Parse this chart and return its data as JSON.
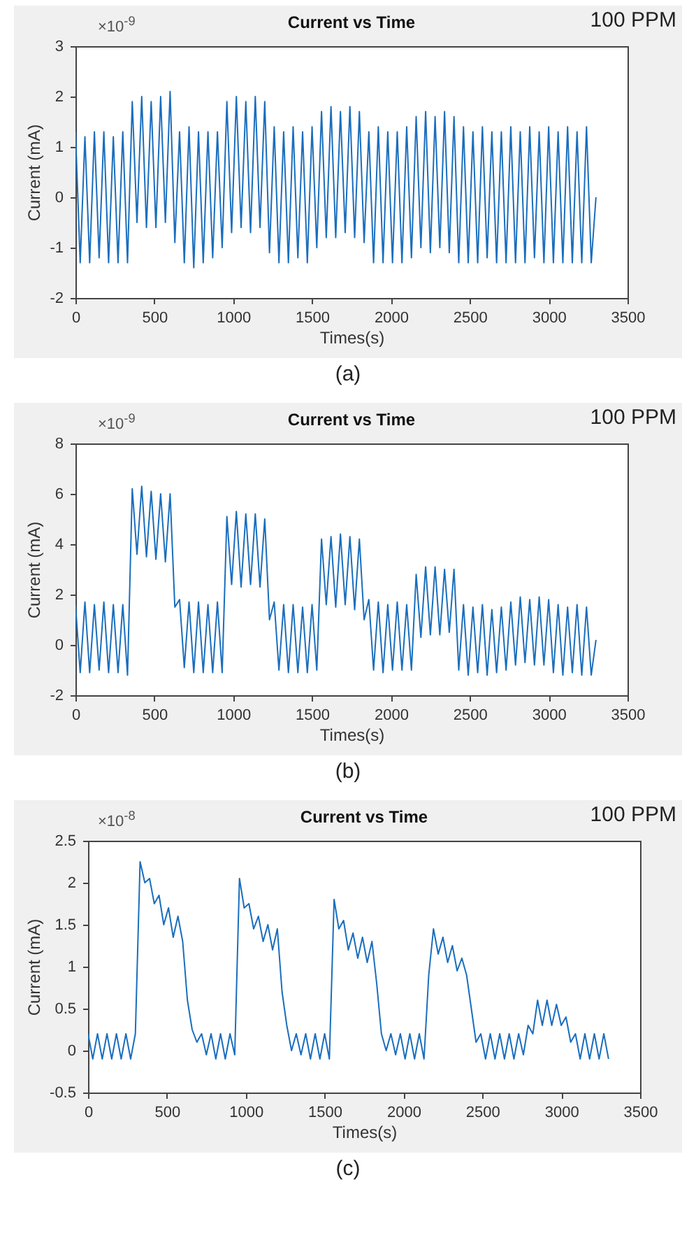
{
  "chart_data": [
    {
      "type": "line",
      "title": "Current vs Time",
      "xlabel": "Times(s)",
      "ylabel": "Current (mA)",
      "annotations": [
        "×10$^{-9}$",
        "100 PPM",
        "(a)"
      ],
      "x": [
        0,
        30,
        60,
        90,
        120,
        150,
        180,
        210,
        240,
        270,
        300,
        330,
        360,
        390,
        420,
        450,
        480,
        510,
        540,
        570,
        600,
        630,
        660,
        690,
        720,
        750,
        780,
        810,
        840,
        870,
        900,
        930,
        960,
        990,
        1020,
        1050,
        1080,
        1110,
        1140,
        1170,
        1200,
        1230,
        1260,
        1290,
        1320,
        1350,
        1380,
        1410,
        1440,
        1470,
        1500,
        1530,
        1560,
        1590,
        1620,
        1650,
        1680,
        1710,
        1740,
        1770,
        1800,
        1830,
        1860,
        1890,
        1920,
        1950,
        1980,
        2010,
        2040,
        2070,
        2100,
        2130,
        2160,
        2190,
        2220,
        2250,
        2280,
        2310,
        2340,
        2370,
        2400,
        2430,
        2460,
        2490,
        2520,
        2550,
        2580,
        2610,
        2640,
        2670,
        2700,
        2730,
        2760,
        2790,
        2820,
        2850,
        2880,
        2910,
        2940,
        2970,
        3000,
        3030,
        3060,
        3090,
        3120,
        3150,
        3180,
        3210,
        3240,
        3270,
        3300
      ],
      "series": [
        {
          "color": "#1a6ebd",
          "values": [
            1.3,
            -1.3,
            1.2,
            -1.3,
            1.3,
            -1.2,
            1.3,
            -1.3,
            1.2,
            -1.3,
            1.3,
            -1.3,
            1.9,
            -0.5,
            2.0,
            -0.6,
            1.9,
            -0.6,
            2.0,
            -0.5,
            2.1,
            -0.9,
            1.3,
            -1.3,
            1.4,
            -1.4,
            1.3,
            -1.3,
            1.3,
            -1.2,
            1.3,
            -1.0,
            1.9,
            -0.7,
            2.0,
            -0.6,
            1.9,
            -0.7,
            2.0,
            -0.6,
            1.9,
            -1.1,
            1.4,
            -1.3,
            1.3,
            -1.3,
            1.4,
            -1.2,
            1.3,
            -1.3,
            1.4,
            -1.0,
            1.7,
            -0.8,
            1.8,
            -0.8,
            1.7,
            -0.7,
            1.8,
            -0.8,
            1.7,
            -0.9,
            1.3,
            -1.3,
            1.4,
            -1.3,
            1.3,
            -1.3,
            1.3,
            -1.3,
            1.4,
            -1.2,
            1.6,
            -1.0,
            1.7,
            -1.1,
            1.6,
            -1.0,
            1.7,
            -1.1,
            1.6,
            -1.3,
            1.4,
            -1.3,
            1.3,
            -1.3,
            1.4,
            -1.2,
            1.3,
            -1.3,
            1.3,
            -1.3,
            1.4,
            -1.3,
            1.3,
            -1.3,
            1.4,
            -1.2,
            1.3,
            -1.3,
            1.4,
            -1.3,
            1.3,
            -1.3,
            1.4,
            -1.3,
            1.3,
            -1.3,
            1.4,
            -1.3,
            0.0
          ]
        }
      ],
      "xlim": [
        0,
        3500
      ],
      "xticks": [
        0,
        500,
        1000,
        1500,
        2000,
        2500,
        3000,
        3500
      ],
      "ylim": [
        -2,
        3
      ],
      "yticks": [
        -2,
        -1,
        0,
        1,
        2,
        3
      ]
    },
    {
      "type": "line",
      "title": "Current vs Time",
      "xlabel": "Times(s)",
      "ylabel": "Current (mA)",
      "annotations": [
        "×10$^{-9}$",
        "100 PPM",
        "(b)"
      ],
      "x": [
        0,
        30,
        60,
        90,
        120,
        150,
        180,
        210,
        240,
        270,
        300,
        330,
        360,
        390,
        420,
        450,
        480,
        510,
        540,
        570,
        600,
        630,
        660,
        690,
        720,
        750,
        780,
        810,
        840,
        870,
        900,
        930,
        960,
        990,
        1020,
        1050,
        1080,
        1110,
        1140,
        1170,
        1200,
        1230,
        1260,
        1290,
        1320,
        1350,
        1380,
        1410,
        1440,
        1470,
        1500,
        1530,
        1560,
        1590,
        1620,
        1650,
        1680,
        1710,
        1740,
        1770,
        1800,
        1830,
        1860,
        1890,
        1920,
        1950,
        1980,
        2010,
        2040,
        2070,
        2100,
        2130,
        2160,
        2190,
        2220,
        2250,
        2280,
        2310,
        2340,
        2370,
        2400,
        2430,
        2460,
        2490,
        2520,
        2550,
        2580,
        2610,
        2640,
        2670,
        2700,
        2730,
        2760,
        2790,
        2820,
        2850,
        2880,
        2910,
        2940,
        2970,
        3000,
        3030,
        3060,
        3090,
        3120,
        3150,
        3180,
        3210,
        3240,
        3270,
        3300
      ],
      "series": [
        {
          "color": "#1a6ebd",
          "values": [
            1.6,
            -1.1,
            1.7,
            -1.1,
            1.6,
            -1.0,
            1.7,
            -1.1,
            1.6,
            -1.1,
            1.6,
            -1.2,
            6.2,
            3.6,
            6.3,
            3.5,
            6.1,
            3.4,
            6.0,
            3.3,
            6.0,
            1.5,
            1.8,
            -0.9,
            1.7,
            -1.1,
            1.7,
            -1.1,
            1.6,
            -1.1,
            1.7,
            -1.1,
            5.1,
            2.4,
            5.3,
            2.3,
            5.2,
            2.4,
            5.2,
            2.3,
            5.0,
            1.0,
            1.7,
            -1.0,
            1.6,
            -1.1,
            1.6,
            -1.1,
            1.5,
            -1.1,
            1.6,
            -1.0,
            4.2,
            1.6,
            4.3,
            1.5,
            4.4,
            1.6,
            4.3,
            1.4,
            4.2,
            1.0,
            1.8,
            -1.0,
            1.7,
            -1.1,
            1.6,
            -1.0,
            1.7,
            -1.0,
            1.6,
            -1.0,
            2.8,
            0.3,
            3.1,
            0.4,
            3.1,
            0.4,
            3.0,
            0.5,
            3.0,
            -1.0,
            1.6,
            -1.2,
            1.5,
            -1.1,
            1.6,
            -1.2,
            1.4,
            -1.1,
            1.5,
            -1.0,
            1.7,
            -0.8,
            1.9,
            -0.7,
            1.8,
            -0.8,
            1.9,
            -0.8,
            1.8,
            -1.1,
            1.6,
            -1.2,
            1.5,
            -1.1,
            1.6,
            -1.2,
            1.5,
            -1.2,
            0.2
          ]
        }
      ],
      "xlim": [
        0,
        3500
      ],
      "xticks": [
        0,
        500,
        1000,
        1500,
        2000,
        2500,
        3000,
        3500
      ],
      "ylim": [
        -2,
        8
      ],
      "yticks": [
        -2,
        0,
        2,
        4,
        6,
        8
      ]
    },
    {
      "type": "line",
      "title": "Current vs Time",
      "xlabel": "Times(s)",
      "ylabel": "Current (mA)",
      "annotations": [
        "×10$^{-8}$",
        "100 PPM",
        "(c)"
      ],
      "x": [
        0,
        30,
        60,
        90,
        120,
        150,
        180,
        210,
        240,
        270,
        300,
        330,
        360,
        390,
        420,
        450,
        480,
        510,
        540,
        570,
        600,
        630,
        660,
        690,
        720,
        750,
        780,
        810,
        840,
        870,
        900,
        930,
        960,
        990,
        1020,
        1050,
        1080,
        1110,
        1140,
        1170,
        1200,
        1230,
        1260,
        1290,
        1320,
        1350,
        1380,
        1410,
        1440,
        1470,
        1500,
        1530,
        1560,
        1590,
        1620,
        1650,
        1680,
        1710,
        1740,
        1770,
        1800,
        1830,
        1860,
        1890,
        1920,
        1950,
        1980,
        2010,
        2040,
        2070,
        2100,
        2130,
        2160,
        2190,
        2220,
        2250,
        2280,
        2310,
        2340,
        2370,
        2400,
        2430,
        2460,
        2490,
        2520,
        2550,
        2580,
        2610,
        2640,
        2670,
        2700,
        2730,
        2760,
        2790,
        2820,
        2850,
        2880,
        2910,
        2940,
        2970,
        3000,
        3030,
        3060,
        3090,
        3120,
        3150,
        3180,
        3210,
        3240,
        3270,
        3300
      ],
      "series": [
        {
          "color": "#1a6ebd",
          "values": [
            0.2,
            -0.1,
            0.2,
            -0.1,
            0.2,
            -0.1,
            0.2,
            -0.1,
            0.2,
            -0.1,
            0.2,
            2.25,
            2.0,
            2.05,
            1.75,
            1.85,
            1.5,
            1.7,
            1.35,
            1.6,
            1.3,
            0.6,
            0.25,
            0.1,
            0.2,
            -0.05,
            0.2,
            -0.1,
            0.2,
            -0.1,
            0.2,
            -0.05,
            2.05,
            1.7,
            1.75,
            1.45,
            1.6,
            1.3,
            1.5,
            1.2,
            1.45,
            0.7,
            0.3,
            0.0,
            0.2,
            -0.05,
            0.2,
            -0.1,
            0.2,
            -0.1,
            0.2,
            -0.1,
            1.8,
            1.45,
            1.55,
            1.2,
            1.4,
            1.1,
            1.35,
            1.05,
            1.3,
            0.8,
            0.2,
            0.0,
            0.2,
            -0.05,
            0.2,
            -0.1,
            0.2,
            -0.1,
            0.2,
            -0.1,
            0.9,
            1.45,
            1.15,
            1.35,
            1.05,
            1.25,
            0.95,
            1.1,
            0.9,
            0.5,
            0.1,
            0.2,
            -0.1,
            0.2,
            -0.1,
            0.2,
            -0.1,
            0.2,
            -0.1,
            0.2,
            -0.05,
            0.3,
            0.2,
            0.6,
            0.3,
            0.6,
            0.3,
            0.55,
            0.3,
            0.4,
            0.1,
            0.2,
            -0.1,
            0.2,
            -0.1,
            0.2,
            -0.1,
            0.2,
            -0.1
          ]
        }
      ],
      "xlim": [
        0,
        3500
      ],
      "xticks": [
        0,
        500,
        1000,
        1500,
        2000,
        2500,
        3000,
        3500
      ],
      "ylim": [
        -0.5,
        2.5
      ],
      "yticks": [
        -0.5,
        0,
        0.5,
        1,
        1.5,
        2,
        2.5
      ]
    }
  ]
}
